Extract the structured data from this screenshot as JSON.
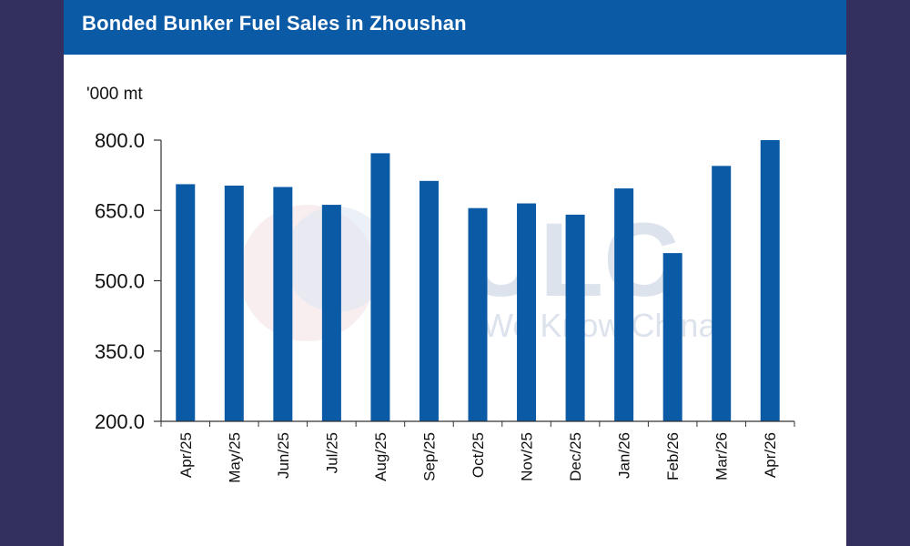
{
  "header": {
    "title": "Bonded Bunker Fuel Sales in Zhoushan"
  },
  "colors": {
    "background": "#33305f",
    "header": "#0b5aa6",
    "bar": "#0b5aa6",
    "axis": "#333333"
  },
  "watermark": {
    "text": "ULC",
    "tagline": "We Know China"
  },
  "chart_data": {
    "type": "bar",
    "title": "Bonded Bunker Fuel Sales in Zhoushan",
    "ylabel": "'000 mt",
    "xlabel": "",
    "ylim": [
      200,
      800
    ],
    "yticks": [
      200,
      350,
      500,
      650,
      800
    ],
    "ytick_labels": [
      "200.0",
      "350.0",
      "500.0",
      "650.0",
      "800.0"
    ],
    "grid": false,
    "categories": [
      "Apr/25",
      "May/25",
      "Jun/25",
      "Jul/25",
      "Aug/25",
      "Sep/25",
      "Oct/25",
      "Nov/25",
      "Dec/25",
      "Jan/26",
      "Feb/26",
      "Mar/26",
      "Apr/26"
    ],
    "values": [
      706,
      703,
      700,
      662,
      772,
      713,
      655,
      665,
      641,
      697,
      559,
      745,
      800
    ]
  }
}
